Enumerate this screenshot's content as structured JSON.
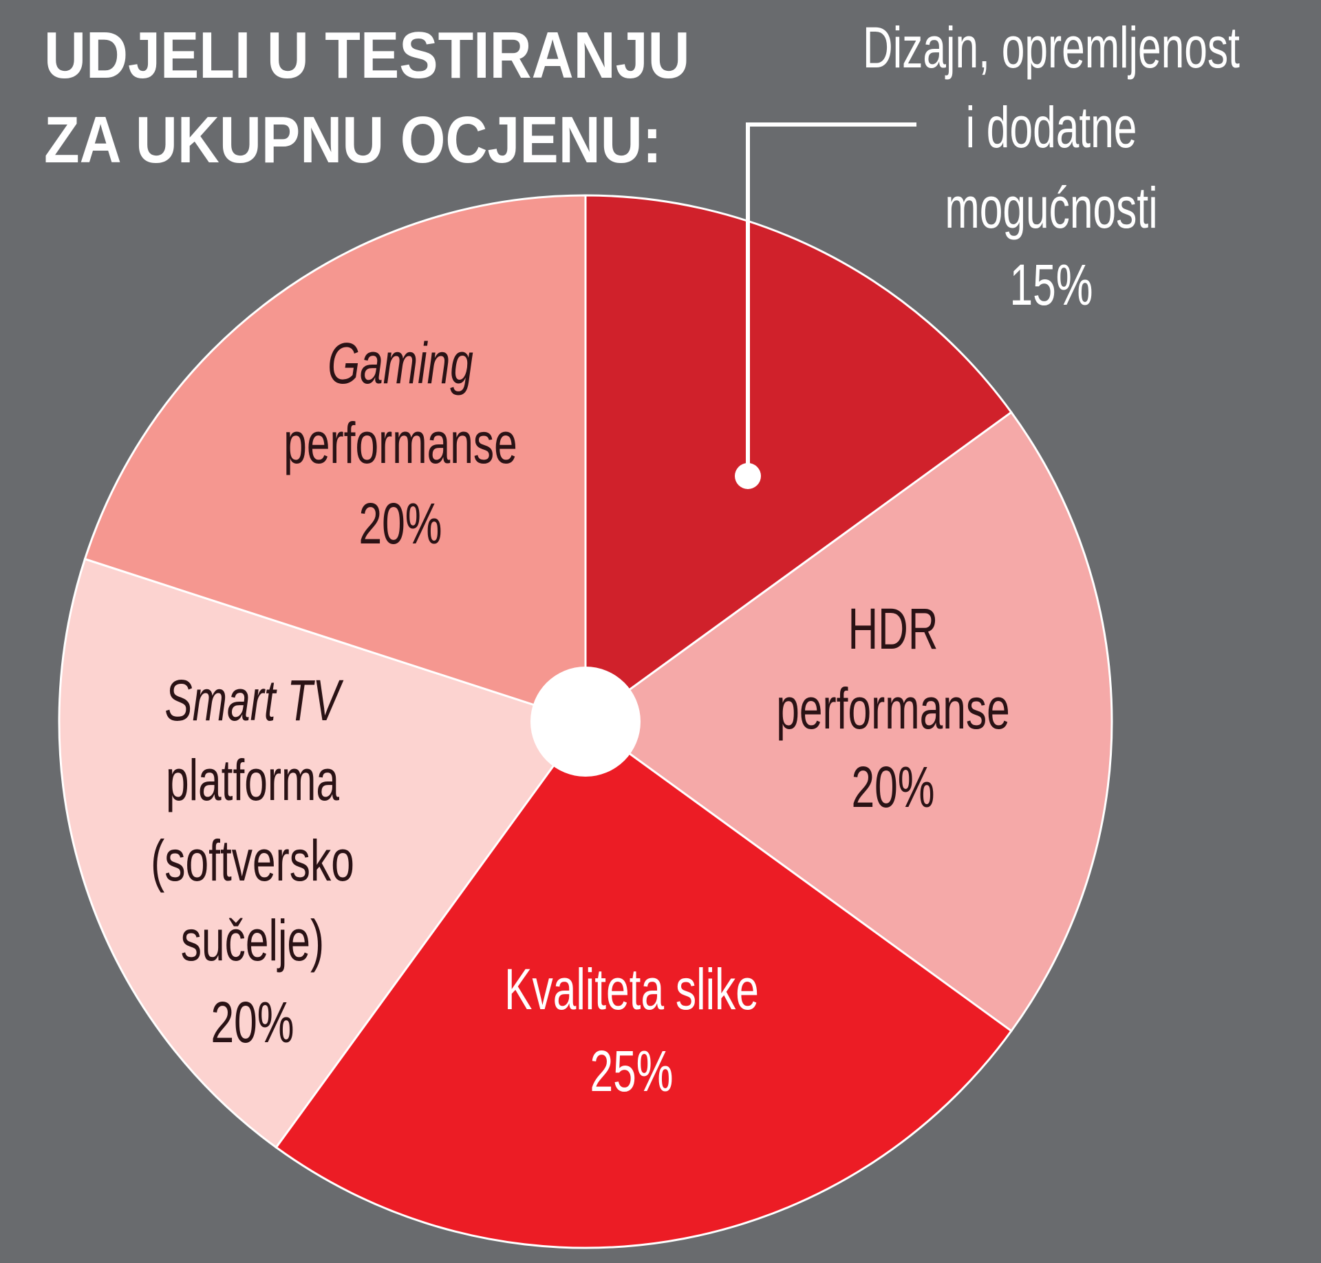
{
  "chart_data": {
    "type": "pie",
    "title": "UDJELI U TESTIRANJU ZA UKUPNU OCJENU:",
    "title_lines": [
      "UDJELI U TESTIRANJU",
      "ZA UKUPNU OCJENU:"
    ],
    "start": "12 o'clock, clockwise",
    "slices": [
      {
        "name": "Dizajn, opremljenost i dodatne mogućnosti",
        "lines": [
          "Dizajn, opremljenost",
          "i dodatne",
          "mogućnosti",
          "15%"
        ],
        "value": 15,
        "color": "#d0212b"
      },
      {
        "name": "HDR performanse",
        "lines": [
          "HDR",
          "performanse",
          "20%"
        ],
        "value": 20,
        "color": "#f5a9a8"
      },
      {
        "name": "Kvaliteta slike",
        "lines": [
          "Kvaliteta slike",
          "25%"
        ],
        "value": 25,
        "color": "#ec1c25"
      },
      {
        "name": "Smart TV platforma (softversko sučelje)",
        "lines": [
          "Smart TV",
          "platforma",
          "(softversko",
          "sučelje)",
          "20%"
        ],
        "value": 20,
        "color": "#fcd3d0"
      },
      {
        "name": "Gaming performanse",
        "lines": [
          "Gaming",
          "performanse",
          "20%"
        ],
        "value": 20,
        "color": "#f59790"
      }
    ],
    "background": "#696b6e"
  }
}
